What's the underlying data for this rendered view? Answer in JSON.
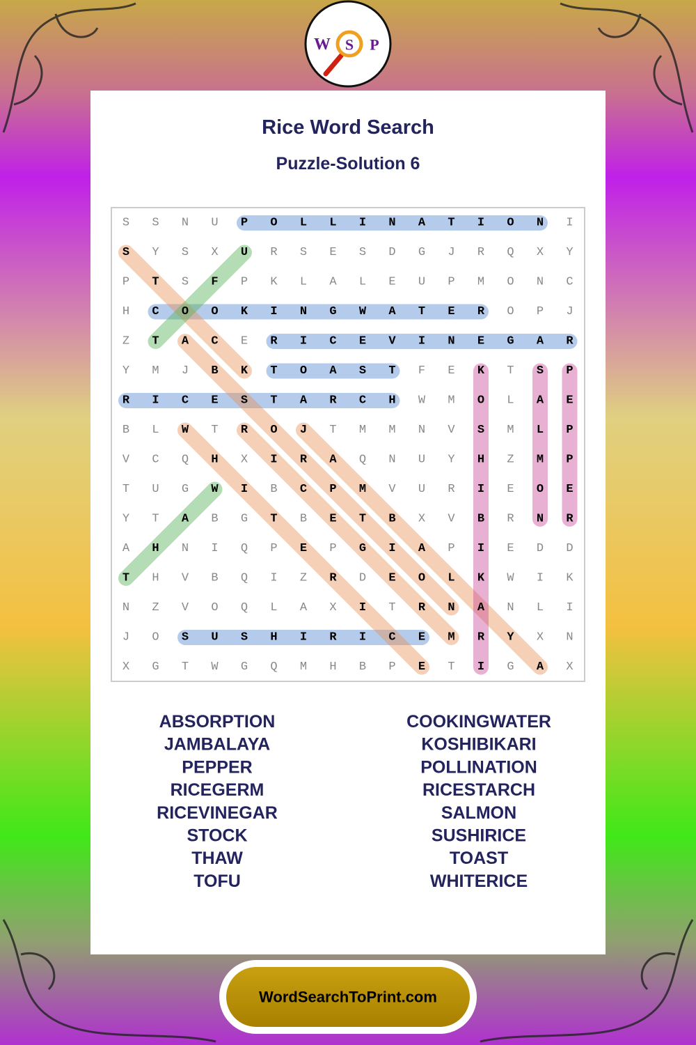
{
  "logo": {
    "letters": [
      "W",
      "S",
      "P"
    ]
  },
  "header": {
    "title": "Rice Word Search",
    "subtitle": "Puzzle-Solution 6"
  },
  "grid": {
    "rows": [
      [
        "S",
        "S",
        "N",
        "U",
        "P",
        "O",
        "L",
        "L",
        "I",
        "N",
        "A",
        "T",
        "I",
        "O",
        "N",
        "I"
      ],
      [
        "S",
        "Y",
        "S",
        "X",
        "U",
        "R",
        "S",
        "E",
        "S",
        "D",
        "G",
        "J",
        "R",
        "Q",
        "X",
        "Y"
      ],
      [
        "P",
        "T",
        "S",
        "F",
        "P",
        "K",
        "L",
        "A",
        "L",
        "E",
        "U",
        "P",
        "M",
        "O",
        "N",
        "C"
      ],
      [
        "H",
        "C",
        "O",
        "O",
        "K",
        "I",
        "N",
        "G",
        "W",
        "A",
        "T",
        "E",
        "R",
        "O",
        "P",
        "J"
      ],
      [
        "Z",
        "T",
        "A",
        "C",
        "E",
        "R",
        "I",
        "C",
        "E",
        "V",
        "I",
        "N",
        "E",
        "G",
        "A",
        "R"
      ],
      [
        "Y",
        "M",
        "J",
        "B",
        "K",
        "T",
        "O",
        "A",
        "S",
        "T",
        "F",
        "E",
        "K",
        "T",
        "S",
        "P"
      ],
      [
        "R",
        "I",
        "C",
        "E",
        "S",
        "T",
        "A",
        "R",
        "C",
        "H",
        "W",
        "M",
        "O",
        "L",
        "A",
        "E"
      ],
      [
        "B",
        "L",
        "W",
        "T",
        "R",
        "O",
        "J",
        "T",
        "M",
        "M",
        "N",
        "V",
        "S",
        "M",
        "L",
        "P"
      ],
      [
        "V",
        "C",
        "Q",
        "H",
        "X",
        "I",
        "R",
        "A",
        "Q",
        "N",
        "U",
        "Y",
        "H",
        "Z",
        "M",
        "P"
      ],
      [
        "T",
        "U",
        "G",
        "W",
        "I",
        "B",
        "C",
        "P",
        "M",
        "V",
        "U",
        "R",
        "I",
        "E",
        "O",
        "E"
      ],
      [
        "Y",
        "T",
        "A",
        "B",
        "G",
        "T",
        "B",
        "E",
        "T",
        "B",
        "X",
        "V",
        "B",
        "R",
        "N",
        "R"
      ],
      [
        "A",
        "H",
        "N",
        "I",
        "Q",
        "P",
        "E",
        "P",
        "G",
        "I",
        "A",
        "P",
        "I",
        "E",
        "D",
        "D"
      ],
      [
        "T",
        "H",
        "V",
        "B",
        "Q",
        "I",
        "Z",
        "R",
        "D",
        "E",
        "O",
        "L",
        "K",
        "W",
        "I",
        "K"
      ],
      [
        "N",
        "Z",
        "V",
        "O",
        "Q",
        "L",
        "A",
        "X",
        "I",
        "T",
        "R",
        "N",
        "A",
        "N",
        "L",
        "I"
      ],
      [
        "J",
        "O",
        "S",
        "U",
        "S",
        "H",
        "I",
        "R",
        "I",
        "C",
        "E",
        "M",
        "R",
        "Y",
        "X",
        "N"
      ],
      [
        "X",
        "G",
        "T",
        "W",
        "G",
        "Q",
        "M",
        "H",
        "B",
        "P",
        "E",
        "T",
        "I",
        "G",
        "A",
        "X"
      ]
    ]
  },
  "words": {
    "left": [
      "ABSORPTION",
      "JAMBALAYA",
      "PEPPER",
      "RICEGERM",
      "RICEVINEGAR",
      "STOCK",
      "THAW",
      "TOFU"
    ],
    "right": [
      "COOKINGWATER",
      "KOSHIBIKARI",
      "POLLINATION",
      "RICESTARCH",
      "SALMON",
      "SUSHIRICE",
      "TOAST",
      "WHITERICE"
    ]
  },
  "footer": {
    "url": "WordSearchToPrint.com"
  }
}
